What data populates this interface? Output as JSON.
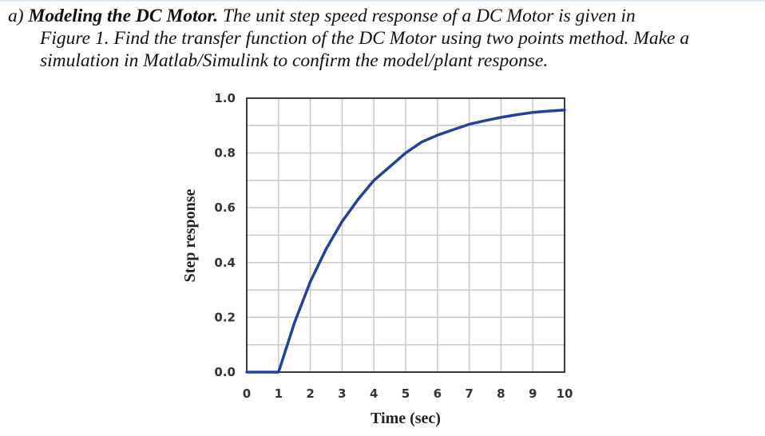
{
  "problem": {
    "tag": "a)",
    "heading": "Modeling the DC Motor.",
    "line1_rest": "The unit step speed response of a DC Motor is given in",
    "line2": "Figure 1. Find the transfer function of the DC Motor using two points method. Make a",
    "line3": "simulation in Matlab/Simulink to confirm the model/plant response."
  },
  "colors": {
    "curve": "#23419b",
    "grid": "#c8c8c8",
    "frame": "#3a3a3a"
  },
  "chart_data": {
    "type": "line",
    "xlabel": "Time (sec)",
    "ylabel": "Step response",
    "xlim": [
      0,
      10
    ],
    "ylim": [
      0,
      1.0
    ],
    "grid": true,
    "x_ticks": [
      "0",
      "1",
      "2",
      "3",
      "4",
      "5",
      "6",
      "7",
      "8",
      "9",
      "10"
    ],
    "y_ticks": [
      "0.0",
      "0.2",
      "0.4",
      "0.6",
      "0.8",
      "1.0"
    ],
    "series": [
      {
        "x": [
          0,
          0.5,
          1.0,
          1.5,
          2.0,
          2.5,
          3.0,
          3.5,
          4.0,
          4.5,
          5.0,
          5.5,
          6.0,
          6.5,
          7.0,
          7.5,
          8.0,
          8.5,
          9.0,
          9.5,
          10.0
        ],
        "values": [
          0,
          0,
          0,
          0.18,
          0.33,
          0.45,
          0.55,
          0.63,
          0.7,
          0.75,
          0.8,
          0.84,
          0.865,
          0.885,
          0.905,
          0.918,
          0.93,
          0.94,
          0.948,
          0.953,
          0.957
        ]
      }
    ]
  }
}
